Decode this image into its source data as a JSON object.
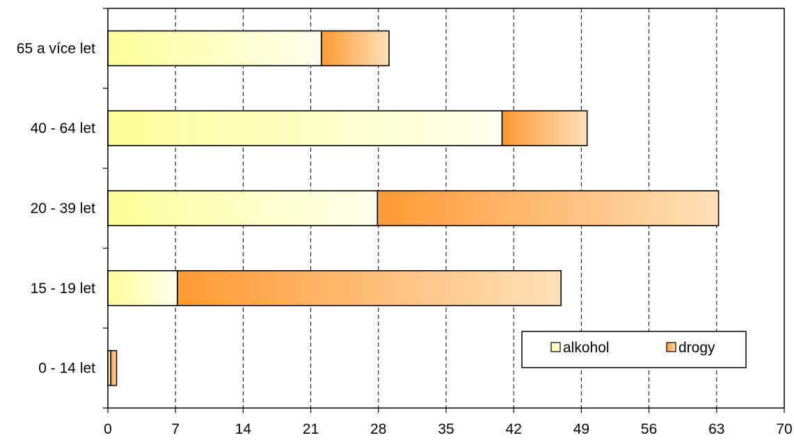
{
  "chart_data": {
    "type": "bar",
    "orientation": "horizontal",
    "stacked": true,
    "categories": [
      "65 a více let",
      "40 - 64 let",
      "20 - 39 let",
      "15 - 19 let",
      "0 - 14 let"
    ],
    "series": [
      {
        "name": "alkohol",
        "values": [
          22.1,
          40.8,
          27.9,
          7.2,
          0.3
        ]
      },
      {
        "name": "drogy",
        "values": [
          7.0,
          8.8,
          35.3,
          39.7,
          0.6
        ]
      }
    ],
    "xlim": [
      0,
      70
    ],
    "xticks": [
      "0",
      "7",
      "14",
      "21",
      "28",
      "35",
      "42",
      "49",
      "56",
      "63",
      "70"
    ],
    "grid": {
      "vertical": true,
      "style": "dashed"
    },
    "legend": {
      "position": "bottom-right"
    },
    "title": "",
    "xlabel": "",
    "ylabel": "",
    "colors": {
      "alkohol_start": "#ffff99",
      "alkohol_end": "#ffffee",
      "drogy_start": "#ff9933",
      "drogy_end": "#ffe0b8",
      "outline": "#000000",
      "grid": "#000000"
    }
  }
}
